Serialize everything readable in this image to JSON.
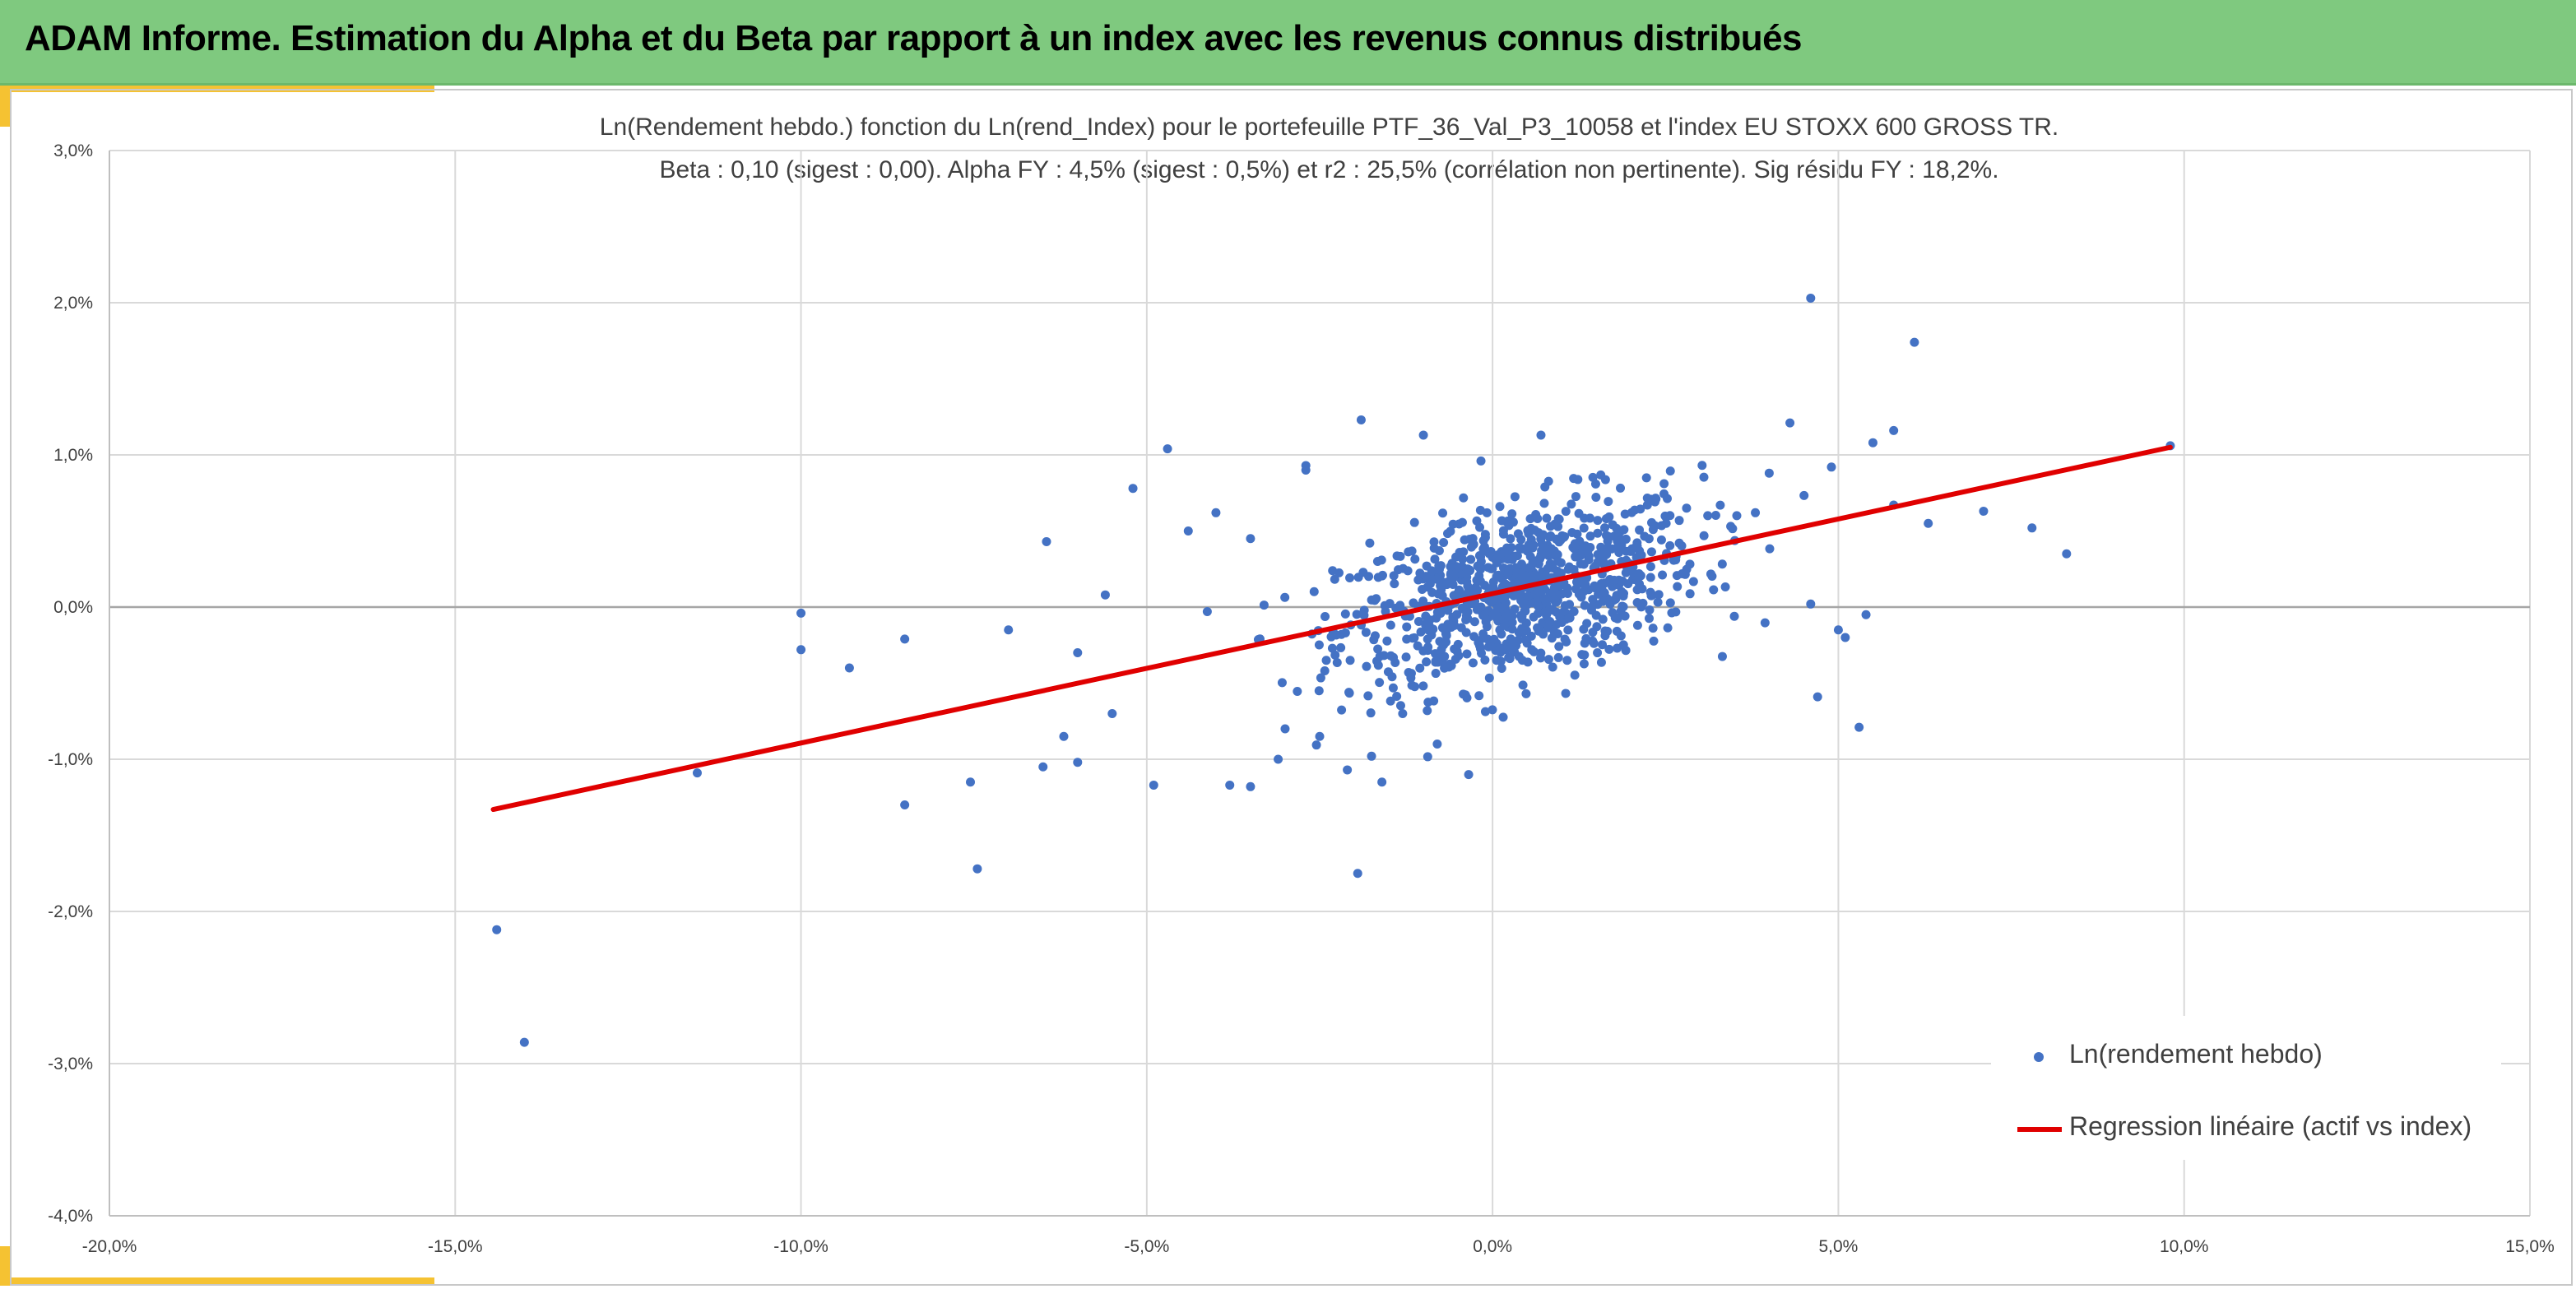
{
  "header": {
    "title": "ADAM Informe. Estimation du Alpha et du Beta par rapport à un index avec les revenus connus distribués"
  },
  "colors": {
    "banner": "#7fc97f",
    "accent": "#f5c232",
    "scatter": "#4472c4",
    "regression": "#e00000",
    "grid": "#d9d9d9"
  },
  "chart_data": {
    "type": "scatter",
    "title": "Ln(Rendement hebdo.) fonction du Ln(rend_Index) pour le portefeuille PTF_36_Val_P3_10058 et l'index EU STOXX 600 GROSS TR.",
    "subtitle": "Beta : 0,10 (sigest : 0,00). Alpha FY : 4,5% (sigest : 0,5%) et r2 : 25,5% (corrélation non pertinente). Sig résidu FY : 18,2%.",
    "xlabel": "",
    "ylabel": "",
    "xlim": [
      -0.2,
      0.15
    ],
    "ylim": [
      -0.04,
      0.03
    ],
    "x_ticks": [
      "-20,0%",
      "-15,0%",
      "-10,0%",
      "-5,0%",
      "0,0%",
      "5,0%",
      "10,0%",
      "15,0%"
    ],
    "y_ticks": [
      "3,0%",
      "2,0%",
      "1,0%",
      "0,0%",
      "-1,0%",
      "-2,0%",
      "-3,0%",
      "-4,0%"
    ],
    "grid": true,
    "legend_position": "bottom-right",
    "legend": [
      "Ln(rendement hebdo)",
      "Regression linéaire (actif vs index)"
    ],
    "series": [
      {
        "name": "Ln(rendement hebdo)",
        "type": "scatter",
        "cluster": {
          "count": 950,
          "x_center": 0.004,
          "y_center": 0.001,
          "x_spread": 0.013,
          "y_spread": 0.0028
        },
        "points": [
          [
            -0.144,
            -0.0212
          ],
          [
            -0.14,
            -0.0286
          ],
          [
            -0.115,
            -0.0109
          ],
          [
            -0.1,
            -0.0004
          ],
          [
            -0.1,
            -0.0028
          ],
          [
            -0.093,
            -0.004
          ],
          [
            -0.085,
            -0.0021
          ],
          [
            -0.085,
            -0.013
          ],
          [
            -0.0745,
            -0.0172
          ],
          [
            -0.0755,
            -0.0115
          ],
          [
            -0.07,
            -0.0015
          ],
          [
            -0.0645,
            0.0043
          ],
          [
            -0.065,
            -0.0105
          ],
          [
            -0.06,
            -0.0102
          ],
          [
            -0.056,
            0.0008
          ],
          [
            -0.052,
            0.0078
          ],
          [
            -0.049,
            -0.0117
          ],
          [
            -0.047,
            0.0104
          ],
          [
            -0.04,
            0.0062
          ],
          [
            -0.038,
            -0.0117
          ],
          [
            -0.035,
            -0.0118
          ],
          [
            -0.031,
            -0.01
          ],
          [
            -0.027,
            0.009
          ],
          [
            -0.027,
            0.0093
          ],
          [
            -0.021,
            -0.0107
          ],
          [
            -0.0195,
            -0.0175
          ],
          [
            -0.019,
            0.0123
          ],
          [
            -0.0175,
            -0.0098
          ],
          [
            -0.016,
            -0.0115
          ],
          [
            -0.01,
            0.0113
          ],
          [
            0.007,
            0.0113
          ],
          [
            0.046,
            0.0203
          ],
          [
            0.061,
            0.0174
          ],
          [
            0.058,
            0.0116
          ],
          [
            0.043,
            0.0121
          ],
          [
            0.055,
            0.0108
          ],
          [
            0.058,
            0.0067
          ],
          [
            0.063,
            0.0055
          ],
          [
            0.071,
            0.0063
          ],
          [
            0.078,
            0.0052
          ],
          [
            0.083,
            0.0035
          ],
          [
            0.098,
            0.0106
          ],
          [
            0.053,
            -0.0079
          ],
          [
            0.054,
            -0.0005
          ],
          [
            0.047,
            -0.0059
          ],
          [
            0.05,
            -0.0015
          ],
          [
            0.051,
            -0.002
          ],
          [
            0.049,
            0.0092
          ],
          [
            0.046,
            0.0002
          ],
          [
            0.04,
            0.0088
          ],
          [
            0.038,
            0.0062
          ],
          [
            -0.044,
            0.005
          ],
          [
            -0.035,
            0.0045
          ],
          [
            -0.03,
            -0.008
          ],
          [
            -0.025,
            -0.0085
          ],
          [
            -0.055,
            -0.007
          ],
          [
            -0.062,
            -0.0085
          ],
          [
            -0.008,
            -0.009
          ],
          [
            -0.013,
            -0.007
          ],
          [
            -0.06,
            -0.003
          ]
        ]
      },
      {
        "name": "Regression linéaire (actif vs index)",
        "type": "line",
        "points": [
          [
            -0.1445,
            -0.0133
          ],
          [
            0.098,
            0.0105
          ]
        ]
      }
    ]
  }
}
